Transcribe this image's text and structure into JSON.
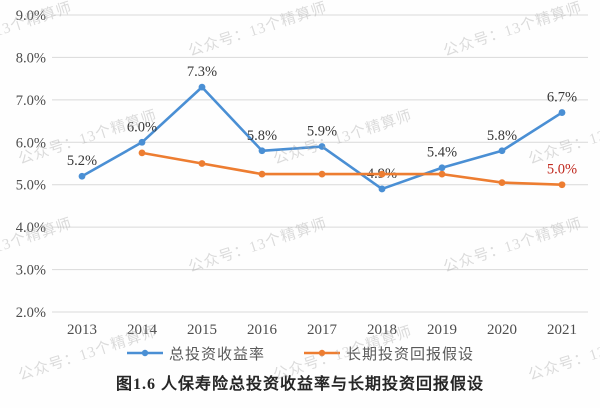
{
  "title": "图1.6  人保寿险总投资收益率与长期投资回报假设",
  "watermark_text": "公众号：13个精算师",
  "legend": [
    {
      "label": "总投资收益率",
      "color": "#4a8fd4"
    },
    {
      "label": "长期投资回报假设",
      "color": "#ed7d31"
    }
  ],
  "chart_data": {
    "type": "line",
    "categories": [
      "2013",
      "2014",
      "2015",
      "2016",
      "2017",
      "2018",
      "2019",
      "2020",
      "2021"
    ],
    "series": [
      {
        "name": "总投资收益率",
        "color": "#4a8fd4",
        "values": [
          5.2,
          6.0,
          7.3,
          5.8,
          5.9,
          4.9,
          5.4,
          5.8,
          6.7
        ],
        "labels": [
          "5.2%",
          "6.0%",
          "7.3%",
          "5.8%",
          "5.9%",
          "4.9%",
          "5.4%",
          "5.8%",
          "6.7%"
        ],
        "label_color": "#383838"
      },
      {
        "name": "长期投资回报假设",
        "color": "#ed7d31",
        "values": [
          null,
          5.75,
          5.5,
          5.25,
          5.25,
          5.25,
          5.25,
          5.05,
          5.0
        ],
        "labels": [
          null,
          null,
          null,
          null,
          null,
          null,
          null,
          null,
          "5.0%"
        ],
        "label_color": "#c0281e"
      }
    ],
    "ylim": [
      2.0,
      9.0
    ],
    "ytick_step": 1.0,
    "ytick_labels": [
      "9.0%",
      "8.0%",
      "7.0%",
      "6.0%",
      "5.0%",
      "4.0%",
      "3.0%",
      "2.0%"
    ],
    "xlabel": "",
    "ylabel": "",
    "grid": "horizontal",
    "gridline_color": "#d9d9d9",
    "axis_label_color": "#4d4d4d",
    "legend_position": "bottom"
  }
}
